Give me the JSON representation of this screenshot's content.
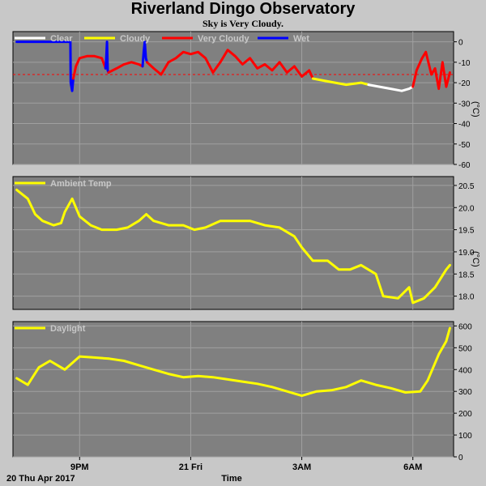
{
  "header": {
    "title": "Riverland Dingo Observatory",
    "subtitle": "Sky is Very Cloudy."
  },
  "footer": {
    "date_label": "20 Thu Apr 2017",
    "x_axis_label": "Time"
  },
  "colors": {
    "plot_bg": "#808080",
    "page_bg": "#c8c8c8",
    "clear": "#ffffff",
    "cloudy": "#ffff00",
    "very_cloudy": "#ff0000",
    "wet": "#0000ff",
    "threshold": "#ff0000"
  },
  "chart_data": [
    {
      "type": "line",
      "panel": "sky",
      "ylabel": "(°C)",
      "ylim": [
        -60,
        5
      ],
      "yticks": [
        0,
        -10,
        -20,
        -30,
        -40,
        -50,
        -60
      ],
      "xlim": [
        19.2,
        31.1
      ],
      "xticks": [
        {
          "x": 21,
          "label": "9PM"
        },
        {
          "x": 24,
          "label": "21 Fri"
        },
        {
          "x": 27,
          "label": "3AM"
        },
        {
          "x": 30,
          "label": "6AM"
        }
      ],
      "legend": [
        "Clear",
        "Cloudy",
        "Very Cloudy",
        "Wet"
      ],
      "threshold": -16,
      "series": [
        {
          "name": "Wet",
          "color_key": "wet",
          "points": [
            [
              19.3,
              0
            ],
            [
              20.5,
              0
            ],
            [
              20.75,
              0
            ],
            [
              20.76,
              -20
            ],
            [
              20.8,
              -24
            ],
            [
              20.83,
              -18
            ]
          ]
        },
        {
          "name": "Very Cloudy",
          "color_key": "very_cloudy",
          "points": [
            [
              20.83,
              -18
            ],
            [
              20.9,
              -12
            ],
            [
              21.0,
              -8
            ],
            [
              21.2,
              -7
            ],
            [
              21.4,
              -7
            ],
            [
              21.6,
              -8
            ],
            [
              21.7,
              -13
            ]
          ]
        },
        {
          "name": "Wet",
          "color_key": "wet",
          "points": [
            [
              21.7,
              -13
            ],
            [
              21.72,
              -8
            ],
            [
              21.74,
              0
            ],
            [
              21.76,
              -14
            ],
            [
              21.78,
              -15
            ]
          ]
        },
        {
          "name": "Very Cloudy",
          "color_key": "very_cloudy",
          "points": [
            [
              21.78,
              -15
            ],
            [
              22.0,
              -13
            ],
            [
              22.2,
              -11
            ],
            [
              22.4,
              -10
            ],
            [
              22.6,
              -11
            ],
            [
              22.7,
              -12
            ]
          ]
        },
        {
          "name": "Wet",
          "color_key": "wet",
          "points": [
            [
              22.7,
              -12
            ],
            [
              22.73,
              -5
            ],
            [
              22.76,
              0
            ],
            [
              22.79,
              -8
            ],
            [
              22.82,
              -10
            ]
          ]
        },
        {
          "name": "Very Cloudy",
          "color_key": "very_cloudy",
          "points": [
            [
              22.82,
              -10
            ],
            [
              23.0,
              -13
            ],
            [
              23.2,
              -16
            ],
            [
              23.4,
              -10
            ],
            [
              23.6,
              -8
            ],
            [
              23.8,
              -5
            ],
            [
              24.0,
              -6
            ],
            [
              24.2,
              -5
            ],
            [
              24.4,
              -8
            ],
            [
              24.6,
              -15
            ],
            [
              24.8,
              -10
            ],
            [
              25.0,
              -4
            ],
            [
              25.2,
              -7
            ],
            [
              25.4,
              -11
            ],
            [
              25.6,
              -8
            ],
            [
              25.8,
              -13
            ],
            [
              26.0,
              -11
            ],
            [
              26.2,
              -14
            ],
            [
              26.4,
              -10
            ],
            [
              26.6,
              -15
            ],
            [
              26.8,
              -12
            ],
            [
              27.0,
              -17
            ],
            [
              27.2,
              -14
            ],
            [
              27.3,
              -18
            ]
          ]
        },
        {
          "name": "Cloudy",
          "color_key": "cloudy",
          "points": [
            [
              27.3,
              -18
            ],
            [
              27.6,
              -19
            ],
            [
              27.9,
              -20
            ],
            [
              28.2,
              -21
            ],
            [
              28.6,
              -20
            ],
            [
              28.8,
              -21
            ]
          ]
        },
        {
          "name": "Clear",
          "color_key": "clear",
          "points": [
            [
              28.8,
              -21
            ],
            [
              29.1,
              -22
            ],
            [
              29.4,
              -23
            ],
            [
              29.7,
              -24
            ],
            [
              29.9,
              -23
            ],
            [
              30.0,
              -22
            ]
          ]
        },
        {
          "name": "Very Cloudy",
          "color_key": "very_cloudy",
          "points": [
            [
              30.0,
              -22
            ],
            [
              30.1,
              -14
            ],
            [
              30.25,
              -8
            ],
            [
              30.35,
              -5
            ],
            [
              30.5,
              -16
            ],
            [
              30.6,
              -13
            ],
            [
              30.7,
              -23
            ],
            [
              30.8,
              -10
            ],
            [
              30.9,
              -22
            ],
            [
              31.0,
              -15
            ]
          ]
        }
      ]
    },
    {
      "type": "line",
      "panel": "ambient",
      "ylabel": "(°C)",
      "ylim": [
        17.7,
        20.7
      ],
      "yticks": [
        20.5,
        20.0,
        19.5,
        19.0,
        18.5,
        18.0
      ],
      "xlim": [
        19.2,
        31.1
      ],
      "legend": [
        "Ambient Temp"
      ],
      "series": [
        {
          "name": "Ambient Temp",
          "color_key": "cloudy",
          "points": [
            [
              19.3,
              20.4
            ],
            [
              19.6,
              20.2
            ],
            [
              19.8,
              19.85
            ],
            [
              20.0,
              19.7
            ],
            [
              20.3,
              19.6
            ],
            [
              20.5,
              19.65
            ],
            [
              20.6,
              19.9
            ],
            [
              20.8,
              20.2
            ],
            [
              21.0,
              19.8
            ],
            [
              21.3,
              19.6
            ],
            [
              21.6,
              19.5
            ],
            [
              22.0,
              19.5
            ],
            [
              22.3,
              19.55
            ],
            [
              22.6,
              19.7
            ],
            [
              22.8,
              19.85
            ],
            [
              23.0,
              19.7
            ],
            [
              23.4,
              19.6
            ],
            [
              23.8,
              19.6
            ],
            [
              24.1,
              19.5
            ],
            [
              24.4,
              19.55
            ],
            [
              24.8,
              19.7
            ],
            [
              25.2,
              19.7
            ],
            [
              25.6,
              19.7
            ],
            [
              26.0,
              19.6
            ],
            [
              26.4,
              19.55
            ],
            [
              26.8,
              19.35
            ],
            [
              27.0,
              19.1
            ],
            [
              27.3,
              18.8
            ],
            [
              27.7,
              18.8
            ],
            [
              28.0,
              18.6
            ],
            [
              28.3,
              18.6
            ],
            [
              28.6,
              18.7
            ],
            [
              29.0,
              18.5
            ],
            [
              29.2,
              18.0
            ],
            [
              29.6,
              17.95
            ],
            [
              29.9,
              18.2
            ],
            [
              30.0,
              17.85
            ],
            [
              30.3,
              17.95
            ],
            [
              30.6,
              18.2
            ],
            [
              30.9,
              18.6
            ],
            [
              31.0,
              18.7
            ]
          ]
        }
      ]
    },
    {
      "type": "line",
      "panel": "daylight",
      "ylabel": "",
      "ylim": [
        0,
        620
      ],
      "yticks": [
        600,
        500,
        400,
        300,
        200,
        100,
        0
      ],
      "xlim": [
        19.2,
        31.1
      ],
      "legend": [
        "Daylight"
      ],
      "series": [
        {
          "name": "Daylight",
          "color_key": "cloudy",
          "points": [
            [
              19.3,
              360
            ],
            [
              19.6,
              330
            ],
            [
              19.9,
              410
            ],
            [
              20.2,
              440
            ],
            [
              20.4,
              420
            ],
            [
              20.6,
              400
            ],
            [
              20.8,
              430
            ],
            [
              21.0,
              460
            ],
            [
              21.4,
              455
            ],
            [
              21.8,
              450
            ],
            [
              22.2,
              440
            ],
            [
              22.6,
              420
            ],
            [
              23.0,
              400
            ],
            [
              23.4,
              380
            ],
            [
              23.8,
              365
            ],
            [
              24.2,
              370
            ],
            [
              24.6,
              365
            ],
            [
              25.0,
              355
            ],
            [
              25.4,
              345
            ],
            [
              25.8,
              335
            ],
            [
              26.2,
              320
            ],
            [
              26.6,
              300
            ],
            [
              27.0,
              280
            ],
            [
              27.4,
              300
            ],
            [
              27.8,
              305
            ],
            [
              28.2,
              320
            ],
            [
              28.6,
              350
            ],
            [
              29.0,
              330
            ],
            [
              29.4,
              315
            ],
            [
              29.8,
              295
            ],
            [
              30.2,
              300
            ],
            [
              30.4,
              350
            ],
            [
              30.7,
              470
            ],
            [
              30.9,
              530
            ],
            [
              31.0,
              590
            ]
          ]
        }
      ]
    }
  ]
}
